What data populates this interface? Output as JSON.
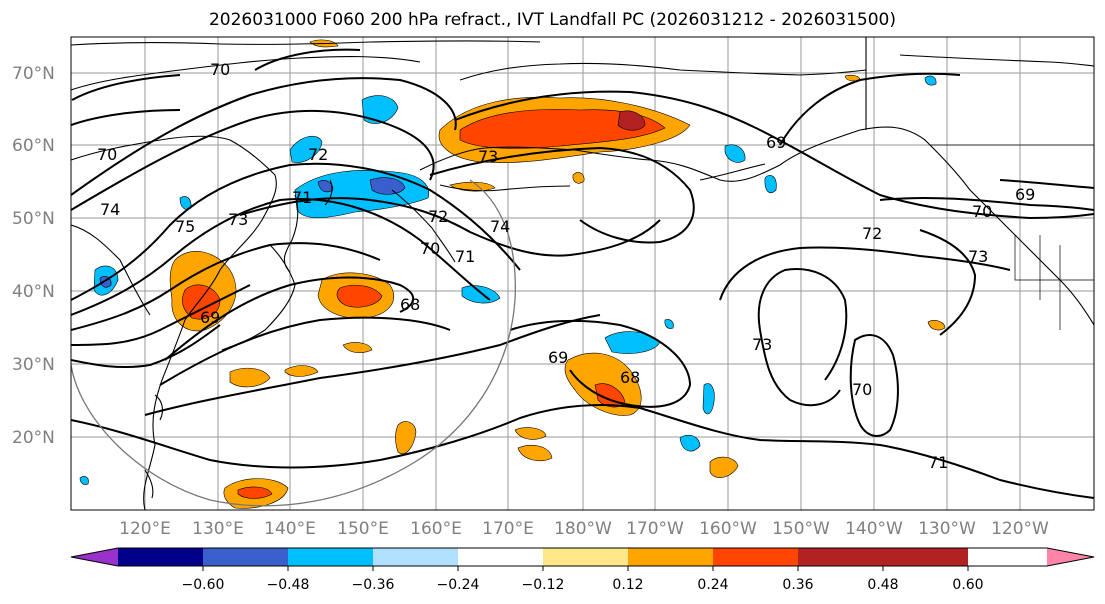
{
  "title": "2026031000 F060 200 hPa refract., IVT Landfall PC (2026031212 - 2026031500)",
  "lat_labels": [
    "70°N",
    "60°N",
    "50°N",
    "40°N",
    "30°N",
    "20°N"
  ],
  "lon_labels": [
    "120°E",
    "130°E",
    "140°E",
    "150°E",
    "160°E",
    "170°E",
    "180°W",
    "170°W",
    "160°W",
    "150°W",
    "140°W",
    "130°W",
    "120°W"
  ],
  "contour_labels": [
    "70",
    "70",
    "74",
    "75",
    "73",
    "72",
    "71",
    "73",
    "72",
    "74",
    "70",
    "71",
    "68",
    "69",
    "68",
    "69",
    "69",
    "70",
    "72",
    "73",
    "73",
    "70",
    "71",
    "69"
  ],
  "colorbar": {
    "colors": [
      "#9932cc",
      "#00008b",
      "#3a5fcd",
      "#00bfff",
      "#b0e0ff",
      "#ffffff",
      "#ffe88a",
      "#ffa500",
      "#ff4500",
      "#b22222",
      "#ff85a8"
    ],
    "tick_labels": [
      "−0.60",
      "−0.48",
      "−0.36",
      "−0.24",
      "−0.12",
      "0.12",
      "0.24",
      "0.36",
      "0.48",
      "0.60"
    ]
  }
}
